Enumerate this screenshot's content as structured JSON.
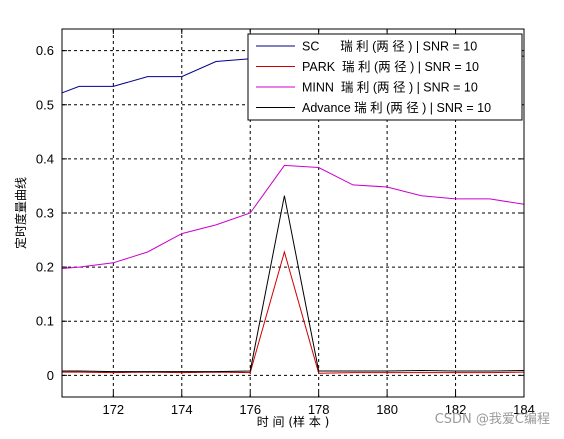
{
  "chart_data": {
    "type": "line",
    "title": "",
    "xlabel": "时 间 (样 本 )",
    "ylabel": "定时度量曲线",
    "xlim": [
      170.5,
      184
    ],
    "ylim": [
      -0.04,
      0.64
    ],
    "xticks": [
      172,
      174,
      176,
      178,
      180,
      182,
      184
    ],
    "yticks": [
      0,
      0.1,
      0.2,
      0.3,
      0.4,
      0.5,
      0.6
    ],
    "xtick_labels": [
      "172",
      "174",
      "176",
      "178",
      "180",
      "182",
      "184"
    ],
    "ytick_labels": [
      "0",
      "0.1",
      "0.2",
      "0.3",
      "0.4",
      "0.5",
      "0.6"
    ],
    "grid": true,
    "legend_position": "top-right",
    "x": [
      170,
      171,
      172,
      173,
      174,
      175,
      176,
      177,
      178,
      179,
      180,
      181,
      182,
      183,
      184
    ],
    "series": [
      {
        "name": "SC      瑞 利 (两 径 ) | SNR = 10",
        "color": "#00008B",
        "values": [
          0.51,
          0.534,
          0.534,
          0.552,
          0.552,
          0.58,
          0.585,
          0.59,
          0.59,
          0.59,
          0.59,
          0.59,
          0.59,
          0.59,
          0.59
        ]
      },
      {
        "name": "PARK  瑞 利 (两 径 ) | SNR = 10",
        "color": "#CC0000",
        "values": [
          0.006,
          0.006,
          0.005,
          0.006,
          0.005,
          0.006,
          0.005,
          0.228,
          0.004,
          0.005,
          0.005,
          0.005,
          0.005,
          0.005,
          0.006
        ]
      },
      {
        "name": "MINN  瑞 利 (两 径 ) | SNR = 10",
        "color": "#CC00CC",
        "values": [
          0.195,
          0.2,
          0.208,
          0.228,
          0.262,
          0.278,
          0.3,
          0.388,
          0.384,
          0.352,
          0.348,
          0.332,
          0.326,
          0.326,
          0.316
        ]
      },
      {
        "name": "Advance 瑞 利 (两 径 ) | SNR = 10",
        "color": "#000000",
        "values": [
          0.008,
          0.008,
          0.007,
          0.007,
          0.007,
          0.007,
          0.008,
          0.332,
          0.008,
          0.008,
          0.008,
          0.009,
          0.008,
          0.008,
          0.009
        ]
      }
    ]
  },
  "watermark": "CSDN @我爱C编程"
}
